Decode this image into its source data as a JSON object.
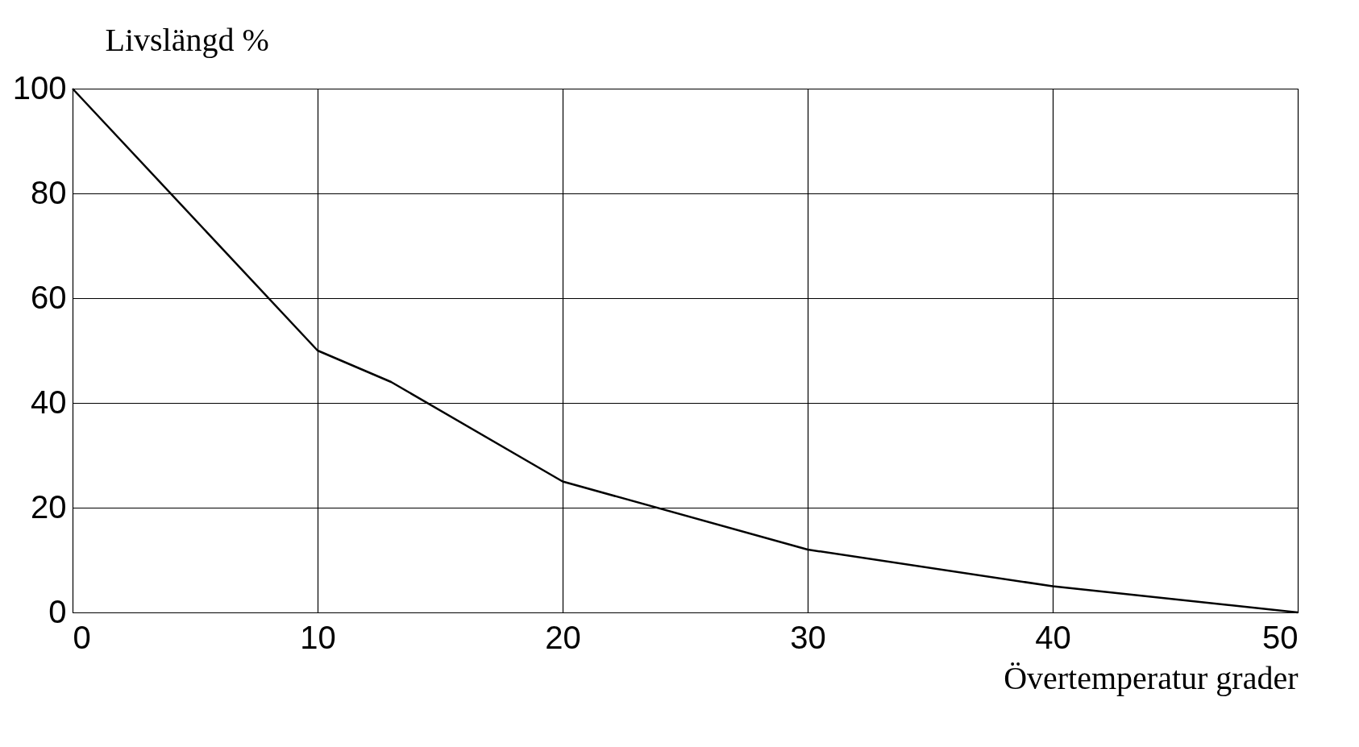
{
  "chart_data": {
    "type": "line",
    "xlabel": "Övertemperatur grader",
    "ylabel": "Livslängd %",
    "x": [
      0,
      10,
      13,
      20,
      30,
      40,
      50
    ],
    "values": [
      100,
      50,
      44,
      25,
      12,
      5,
      0
    ],
    "color": "#000000",
    "xlim": [
      0,
      50
    ],
    "ylim": [
      0,
      100
    ],
    "xticks": [
      0,
      10,
      20,
      30,
      40,
      50
    ],
    "yticks": [
      0,
      20,
      40,
      60,
      80,
      100
    ],
    "grid": true
  }
}
